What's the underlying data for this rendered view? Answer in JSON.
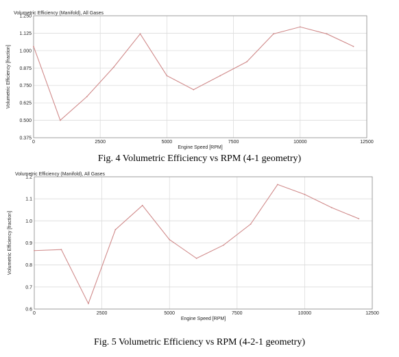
{
  "colors": {
    "line": "#d08a8a",
    "grid": "#dcdcdc",
    "frame": "#8c8c8c"
  },
  "chart_data": [
    {
      "type": "line",
      "title": "Volumetric Efficiency (Manifold), All Gases",
      "xlabel": "Engine Speed [RPM]",
      "ylabel": "Volumetric Efficiency [fraction]",
      "xlim": [
        0,
        12500
      ],
      "ylim": [
        0.375,
        1.25
      ],
      "xticks": [
        0,
        2500,
        5000,
        7500,
        10000,
        12500
      ],
      "xtick_labels": [
        "0",
        "2500",
        "5000",
        "7500",
        "10000",
        "12500"
      ],
      "yticks": [
        0.375,
        0.5,
        0.625,
        0.75,
        0.875,
        1.0,
        1.125,
        1.25
      ],
      "ytick_labels": [
        "0.375",
        "0.500",
        "0.625",
        "0.750",
        "0.875",
        "1.000",
        "1.125",
        "1.250"
      ],
      "grid": true,
      "series": [
        {
          "x": [
            0,
            1000,
            2000,
            3000,
            4000,
            5000,
            6000,
            7000,
            8000,
            9000,
            10000,
            11000,
            12000
          ],
          "y": [
            1.03,
            0.5,
            0.67,
            0.88,
            1.12,
            0.82,
            0.72,
            0.82,
            0.92,
            1.12,
            1.17,
            1.12,
            1.03
          ]
        }
      ],
      "caption": "Fig. 4 Volumetric Efficiency vs RPM (4-1 geometry)"
    },
    {
      "type": "line",
      "title": "Volumetric Efficiency (Manifold), All Gases",
      "xlabel": "Engine Speed [RPM]",
      "ylabel": "Volumetric Efficiency [fraction]",
      "xlim": [
        0,
        12500
      ],
      "ylim": [
        0.6,
        1.2
      ],
      "xticks": [
        0,
        2500,
        5000,
        7500,
        10000,
        12500
      ],
      "xtick_labels": [
        "0",
        "2500",
        "5000",
        "7500",
        "10000",
        "12500"
      ],
      "yticks": [
        0.6,
        0.7,
        0.8,
        0.9,
        1.0,
        1.1,
        1.2
      ],
      "ytick_labels": [
        "0.6",
        "0.7",
        "0.8",
        "0.9",
        "1.0",
        "1.1",
        "1.2"
      ],
      "grid": true,
      "series": [
        {
          "x": [
            0,
            1000,
            2000,
            3000,
            4000,
            5000,
            6000,
            7000,
            8000,
            9000,
            10000,
            11000,
            12000
          ],
          "y": [
            0.865,
            0.87,
            0.625,
            0.96,
            1.07,
            0.915,
            0.83,
            0.89,
            0.985,
            1.165,
            1.12,
            1.06,
            1.01
          ]
        }
      ],
      "caption": "Fig. 5 Volumetric Efficiency vs RPM (4-2-1 geometry)"
    }
  ]
}
